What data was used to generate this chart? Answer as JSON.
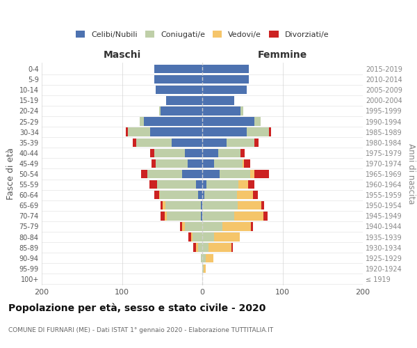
{
  "age_groups": [
    "100+",
    "95-99",
    "90-94",
    "85-89",
    "80-84",
    "75-79",
    "70-74",
    "65-69",
    "60-64",
    "55-59",
    "50-54",
    "45-49",
    "40-44",
    "35-39",
    "30-34",
    "25-29",
    "20-24",
    "15-19",
    "10-14",
    "5-9",
    "0-4"
  ],
  "birth_years": [
    "≤ 1919",
    "1920-1924",
    "1925-1929",
    "1930-1934",
    "1935-1939",
    "1940-1944",
    "1945-1949",
    "1950-1954",
    "1955-1959",
    "1960-1964",
    "1965-1969",
    "1970-1974",
    "1975-1979",
    "1980-1984",
    "1985-1989",
    "1990-1994",
    "1995-1999",
    "2000-2004",
    "2005-2009",
    "2010-2014",
    "2015-2019"
  ],
  "maschi_celibi": [
    0,
    0,
    0,
    0,
    0,
    0,
    2,
    2,
    5,
    8,
    25,
    18,
    22,
    38,
    65,
    73,
    52,
    45,
    58,
    60,
    60
  ],
  "maschi_coniugati": [
    0,
    0,
    2,
    5,
    12,
    22,
    42,
    44,
    48,
    48,
    43,
    40,
    38,
    44,
    28,
    5,
    2,
    0,
    0,
    0,
    0
  ],
  "maschi_vedovi": [
    0,
    0,
    0,
    3,
    2,
    3,
    3,
    3,
    1,
    0,
    0,
    0,
    0,
    0,
    0,
    0,
    0,
    0,
    0,
    0,
    0
  ],
  "maschi_divorziati": [
    0,
    0,
    0,
    3,
    3,
    3,
    5,
    3,
    6,
    10,
    8,
    5,
    5,
    5,
    2,
    0,
    0,
    0,
    0,
    0,
    0
  ],
  "femmine_nubili": [
    0,
    0,
    0,
    0,
    0,
    0,
    0,
    0,
    3,
    5,
    22,
    15,
    20,
    30,
    55,
    65,
    48,
    40,
    55,
    58,
    58
  ],
  "femmine_coniugate": [
    0,
    2,
    4,
    8,
    15,
    25,
    40,
    44,
    40,
    40,
    38,
    35,
    28,
    35,
    28,
    8,
    3,
    0,
    0,
    0,
    0
  ],
  "femmine_vedove": [
    0,
    2,
    10,
    28,
    32,
    36,
    36,
    30,
    20,
    12,
    5,
    2,
    0,
    0,
    0,
    0,
    0,
    0,
    0,
    0,
    0
  ],
  "femmine_divorziate": [
    0,
    0,
    0,
    2,
    0,
    2,
    5,
    3,
    6,
    8,
    18,
    8,
    5,
    5,
    3,
    0,
    0,
    0,
    0,
    0,
    0
  ],
  "colors_celibi": "#4d72b0",
  "colors_coniugati": "#bfcfa8",
  "colors_vedovi": "#f5c56a",
  "colors_divorziati": "#cc2222",
  "xlim": 200,
  "title": "Popolazione per età, sesso e stato civile - 2020",
  "subtitle": "COMUNE DI FURNARI (ME) - Dati ISTAT 1° gennaio 2020 - Elaborazione TUTTITALIA.IT",
  "label_maschi": "Maschi",
  "label_femmine": "Femmine",
  "ylabel_left": "Fasce di età",
  "ylabel_right": "Anni di nascita",
  "legend_labels": [
    "Celibi/Nubili",
    "Coniugati/e",
    "Vedovi/e",
    "Divorziati/e"
  ],
  "background_color": "#ffffff",
  "grid_color": "#cccccc"
}
